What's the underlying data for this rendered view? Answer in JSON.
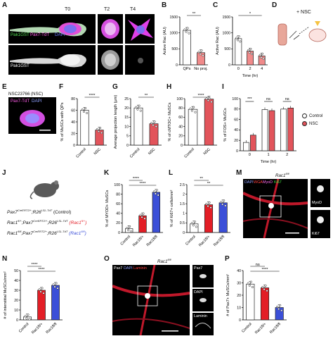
{
  "panels": {
    "A": {
      "letter": "A",
      "t0": "T0",
      "t2": "T2",
      "t4": "T4",
      "stain": [
        "Pak1GST",
        "Pax7-TdT",
        "DAPI"
      ],
      "stain2": "Pak1GST"
    },
    "D": {
      "letter": "D",
      "label": "+ NSC"
    },
    "E": {
      "letter": "E",
      "title": "NSC23766 (NSC)",
      "stain": [
        "Pax7-TdT",
        "DAPI"
      ]
    },
    "J": {
      "letter": "J",
      "lines": [
        {
          "a": "Pax7",
          "s1": "CreERT2/+",
          "b": ";R26",
          "s2": "LSL-TdT",
          "c": " (Control)",
          "cc": ""
        },
        {
          "a": "Rac1",
          "s1": "fl/+",
          "b": ";Pax7",
          "s2": "CreERT2/+",
          "c": ";R26",
          "s3": "LSL-TdT",
          "d": " (Rac1",
          "s4": "fl/+",
          "e": ")"
        },
        {
          "a": "Rac1",
          "s1": "fl/fl",
          "b": ";Pax7",
          "s2": "CreERT2/+",
          "c": ";R26",
          "s3": "LSL-TdT",
          "d": " (Rac1",
          "s4": "fl/fl",
          "e": ")"
        }
      ]
    },
    "M": {
      "letter": "M",
      "title": "Rac1fl/fl",
      "stain": [
        "DAPI",
        "WGA",
        "MyoD",
        "Ki67"
      ],
      "insets": [
        "MyoD",
        "Ki67"
      ]
    },
    "O": {
      "letter": "O",
      "title": "Rac1fl/fl",
      "stain": [
        "Pax7",
        "DAPI",
        "Laminin"
      ],
      "insets": [
        "Pax7",
        "DAPI",
        "Laminin"
      ]
    }
  },
  "chart_data": [
    {
      "id": "B",
      "type": "bar",
      "ylabel": "Active Rac (AU)",
      "ylim": [
        0,
        1500
      ],
      "yticks": [
        0,
        500,
        1000,
        1500
      ],
      "categories": [
        "QPs",
        "No proj."
      ],
      "values": [
        1080,
        380
      ],
      "colors": [
        "#ffffff",
        "#f08a8a"
      ],
      "sig": [
        {
          "a": 0,
          "b": 1,
          "t": "**"
        }
      ]
    },
    {
      "id": "C",
      "type": "bar",
      "ylabel": "Active Rac (AU)",
      "xlabel": "Time (hr)",
      "ylim": [
        0,
        1500
      ],
      "yticks": [
        0,
        500,
        1000,
        1500
      ],
      "categories": [
        "0",
        "2",
        "4"
      ],
      "values": [
        820,
        430,
        280
      ],
      "colors": [
        "#ffffff",
        "#f08a8a",
        "#f08a8a"
      ],
      "sig": [
        {
          "a": 0,
          "b": 2,
          "t": "*"
        }
      ]
    },
    {
      "id": "F",
      "type": "bar",
      "ylabel": "% of MuSCs with QPs",
      "ylim": [
        0,
        80
      ],
      "yticks": [
        0,
        20,
        40,
        60,
        80
      ],
      "categories": [
        "Control",
        "NSC"
      ],
      "values": [
        60,
        26
      ],
      "colors": [
        "#ffffff",
        "#e2545b"
      ],
      "sig": [
        {
          "a": 0,
          "b": 1,
          "t": "****"
        }
      ]
    },
    {
      "id": "G",
      "type": "bar",
      "ylabel": "Average projection length (μm)",
      "ylim": [
        0,
        25
      ],
      "yticks": [
        0,
        5,
        10,
        15,
        20,
        25
      ],
      "categories": [
        "Control",
        "NSC"
      ],
      "values": [
        20,
        11.5
      ],
      "colors": [
        "#ffffff",
        "#e2545b"
      ],
      "sig": [
        {
          "a": 0,
          "b": 1,
          "t": "**"
        }
      ]
    },
    {
      "id": "H",
      "type": "bar",
      "ylabel": "% of cMTOC+ MuSCs",
      "ylim": [
        0,
        100
      ],
      "yticks": [
        0,
        20,
        40,
        60,
        80,
        100
      ],
      "categories": [
        "Control",
        "NSC"
      ],
      "values": [
        77,
        99
      ],
      "colors": [
        "#ffffff",
        "#e2545b"
      ],
      "sig": [
        {
          "a": 0,
          "b": 1,
          "t": "****"
        }
      ]
    },
    {
      "id": "I",
      "type": "bar",
      "ylabel": "% of FOS+ MuSCs",
      "xlabel": "Time (hr)",
      "ylim": [
        0,
        100
      ],
      "yticks": [
        0,
        20,
        40,
        60,
        80,
        100
      ],
      "categories": [
        "0",
        "1",
        "2"
      ],
      "series": [
        {
          "name": "Control",
          "values": [
            16,
            79,
            80
          ],
          "color": "#ffffff"
        },
        {
          "name": "NSC",
          "values": [
            30,
            77,
            82
          ],
          "color": "#e2545b"
        }
      ],
      "sig": [
        {
          "g": 0,
          "t": "***"
        },
        {
          "g": 1,
          "t": "ns"
        },
        {
          "g": 2,
          "t": "ns"
        }
      ]
    },
    {
      "id": "K",
      "type": "bar",
      "ylabel": "% of MYOD+ MuSCs",
      "ylim": [
        0,
        100
      ],
      "yticks": [
        0,
        20,
        40,
        60,
        80,
        100
      ],
      "categories": [
        "Control",
        "Rac1fl/+",
        "Rac1fl/fl"
      ],
      "values": [
        8,
        35,
        84
      ],
      "colors": [
        "#ffffff",
        "#e31e26",
        "#3b4fd8"
      ],
      "sig": [
        {
          "a": 0,
          "b": 1,
          "t": "****"
        },
        {
          "a": 0,
          "b": 2,
          "t": "****"
        }
      ]
    },
    {
      "id": "L",
      "type": "bar",
      "ylabel": "% of Ki67+ cells/mm²",
      "ylim": [
        0,
        2.5
      ],
      "yticks": [
        0.0,
        0.5,
        1.0,
        1.5,
        2.0,
        2.5
      ],
      "categories": [
        "Control",
        "Rac1fl/+",
        "Rac1fl/fl"
      ],
      "values": [
        0.45,
        1.45,
        1.55
      ],
      "colors": [
        "#ffffff",
        "#e31e26",
        "#3b4fd8"
      ],
      "sig": [
        {
          "a": 0,
          "b": 1,
          "t": "**"
        },
        {
          "a": 0,
          "b": 2,
          "t": "**"
        }
      ]
    },
    {
      "id": "N",
      "type": "bar",
      "ylabel": "# of interstitial MuSCs/mm²",
      "ylim": [
        0,
        50
      ],
      "yticks": [
        0,
        10,
        20,
        30,
        40,
        50
      ],
      "categories": [
        "Control",
        "Rac1fl/+",
        "Rac1fl/fl"
      ],
      "values": [
        3,
        30,
        35
      ],
      "colors": [
        "#ffffff",
        "#e31e26",
        "#3b4fd8"
      ],
      "sig": [
        {
          "a": 0,
          "b": 1,
          "t": "****"
        },
        {
          "a": 0,
          "b": 2,
          "t": "****"
        }
      ]
    },
    {
      "id": "P",
      "type": "bar",
      "ylabel": "# of Pax7+ MuSCs/mm²",
      "ylim": [
        0,
        40
      ],
      "yticks": [
        0,
        10,
        20,
        30,
        40
      ],
      "categories": [
        "Control",
        "Rac1fl/+",
        "Rac1fl/fl"
      ],
      "values": [
        29,
        26,
        10
      ],
      "colors": [
        "#ffffff",
        "#e31e26",
        "#3b4fd8"
      ],
      "sig": [
        {
          "a": 0,
          "b": 1,
          "t": "ns"
        },
        {
          "a": 0,
          "b": 2,
          "t": "****"
        }
      ]
    }
  ],
  "legend_I": {
    "items": [
      {
        "label": "Control",
        "color": "#ffffff"
      },
      {
        "label": "NSC",
        "color": "#e2545b"
      }
    ]
  }
}
